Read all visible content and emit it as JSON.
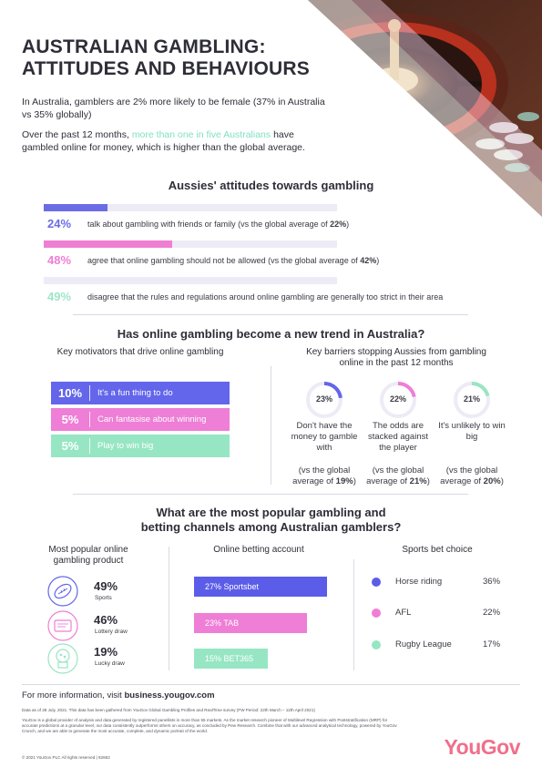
{
  "header": {
    "title_line1": "AUSTRALIAN GAMBLING:",
    "title_line2": "ATTITUDES AND BEHAVIOURS",
    "intro": "In Australia, gamblers are 2% more likely to be female (37% in Australia vs 35% globally)",
    "intro2_pre": "Over the past 12 months, ",
    "intro2_highlight": "more than one in five Australians",
    "intro2_post": " have gambled online for money, which is higher than the global average."
  },
  "attitudes": {
    "title": "Aussies' attitudes towards gambling",
    "items": [
      {
        "pct": "24%",
        "text_pre": "talk about gambling with friends or family (vs the global average of ",
        "text_bold": "22%",
        "text_post": ")",
        "value": 24,
        "color": "#6b6ce6"
      },
      {
        "pct": "48%",
        "text_pre": "agree that online gambling should not be allowed (vs the global average of ",
        "text_bold": "42%",
        "text_post": ")",
        "value": 48,
        "color": "#ef7fd3"
      },
      {
        "pct": "49%",
        "text_pre": "disagree that the rules and regulations around online gambling are generally too strict in their area",
        "text_bold": "",
        "text_post": "",
        "value": 49,
        "color": "#9ee6c8"
      }
    ]
  },
  "trend": {
    "title": "Has online gambling become a new trend in Australia?",
    "motivators_title": "Key motivators that drive online gambling",
    "motivators": [
      {
        "pct": "10%",
        "label": "It's a fun thing to do",
        "color": "#6366ea"
      },
      {
        "pct": "5%",
        "label": "Can fantasise about winning",
        "color": "#ee7ed6"
      },
      {
        "pct": "5%",
        "label": "Play to win big",
        "color": "#97e6c3"
      }
    ],
    "barriers_title_line1": "Key barriers stopping Aussies from gambling",
    "barriers_title_line2": "online in the past 12 months",
    "barriers": [
      {
        "pct": "23%",
        "value": 23,
        "color": "#6366ea",
        "label": "Don't have the money to gamble with",
        "global_line1": "(vs the global",
        "global_pre": "average of ",
        "global_bold": "19%",
        "global_post": ")"
      },
      {
        "pct": "22%",
        "value": 22,
        "color": "#ee7ed6",
        "label": "The odds are stacked against the player",
        "global_line1": "(vs the global",
        "global_pre": "average of ",
        "global_bold": "21%",
        "global_post": ")"
      },
      {
        "pct": "21%",
        "value": 21,
        "color": "#97e6c3",
        "label": "It's unlikely to win big",
        "global_line1": "(vs the global",
        "global_pre": "average of ",
        "global_bold": "20%",
        "global_post": ")"
      }
    ]
  },
  "channels": {
    "title_line1": "What are the most popular gambling and",
    "title_line2": "betting channels among Australian gamblers?",
    "products_title_line1": "Most popular online",
    "products_title_line2": "gambling product",
    "products": [
      {
        "pct": "49%",
        "label": "Sports",
        "icon": "football-icon"
      },
      {
        "pct": "46%",
        "label": "Lottery draw",
        "icon": "lottery-ticket-icon"
      },
      {
        "pct": "19%",
        "label": "Lucky draw",
        "icon": "lucky-draw-machine-icon"
      }
    ],
    "betting_title": "Online betting account",
    "betting": [
      {
        "label": "27% Sportsbet",
        "value": 27,
        "color": "#5b5de8"
      },
      {
        "label": "23% TAB",
        "value": 23,
        "color": "#ee7ed6"
      },
      {
        "label": "15% BET365",
        "value": 15,
        "color": "#97e6c3"
      }
    ],
    "sports_title": "Sports bet choice",
    "sports": [
      {
        "name": "Horse riding",
        "pct": "36%",
        "color": "#5b5de8"
      },
      {
        "name": "AFL",
        "pct": "22%",
        "color": "#ee7ed6"
      },
      {
        "name": "Rugby League",
        "pct": "17%",
        "color": "#97e6c3"
      }
    ]
  },
  "footer": {
    "more_info_pre": "For more information, visit ",
    "more_info_link": "business.yougov.com",
    "data_note": "Data as of 28 July, 2021. This data has been gathered from YouGov Global Gambling Profiles and RealTime survey (FW Period: 22th March – 12th April 2021)",
    "about_line1": "YouGov is a global provider of analysis and data generated by registered panellists in more than 55 markets.  As the market research pioneer of Multilevel Regression with Poststratification (MRP) for",
    "about_line2": "accurate predictions at a granular level, our data consistently outperforms others on accuracy, as concluded by Pew Research. Combine that with our advanced analytical technology, powered by YouGov",
    "about_line3": "Crunch, and we are able to generate the most accurate, complete, and dynamic portrait of the world.",
    "copyright": "© 2021 YouGov PLC All rights reserved | 62662",
    "logo": "YouGov"
  }
}
